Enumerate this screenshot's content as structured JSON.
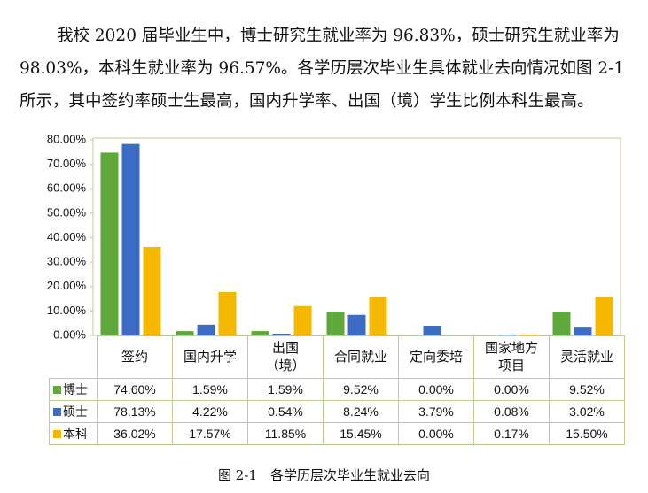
{
  "paragraph_lines": [
    "我校 2020 届毕业生中，博士研究生就业率为 96.83%，硕士研究生就业率为",
    "98.03%，本科生就业率为 96.57%。各学历层次毕业生具体就业去向情况如图 2-1",
    "所示，其中签约率硕士生最高，国内升学率、出国（境）学生比例本科生最高。"
  ],
  "chart_data": {
    "type": "bar",
    "categories": [
      "签约",
      "国内升学",
      "出国\n（境）",
      "合同就业",
      "定向委培",
      "国家地方\n项目",
      "灵活就业"
    ],
    "series": [
      {
        "name": "博士",
        "color": "#5fa83a",
        "values": [
          74.6,
          1.59,
          1.59,
          9.52,
          0,
          0,
          9.52
        ],
        "value_labels": [
          "74.60%",
          "1.59%",
          "1.59%",
          "9.52%",
          "0.00%",
          "0.00%",
          "9.52%"
        ]
      },
      {
        "name": "硕士",
        "color": "#3c6cc4",
        "values": [
          78.13,
          4.22,
          0.54,
          8.24,
          3.79,
          0.08,
          3.02
        ],
        "value_labels": [
          "78.13%",
          "4.22%",
          "0.54%",
          "8.24%",
          "3.79%",
          "0.08%",
          "3.02%"
        ]
      },
      {
        "name": "本科",
        "color": "#f5b800",
        "values": [
          36.02,
          17.57,
          11.85,
          15.45,
          0,
          0.17,
          15.5
        ],
        "value_labels": [
          "36.02%",
          "17.57%",
          "11.85%",
          "15.45%",
          "0.00%",
          "0.17%",
          "15.50%"
        ]
      }
    ],
    "ylim": [
      0,
      80
    ],
    "yticks": [
      {
        "value": 0,
        "label": "0.00%"
      },
      {
        "value": 10,
        "label": "10.00%"
      },
      {
        "value": 20,
        "label": "20.00%"
      },
      {
        "value": 30,
        "label": "30.00%"
      },
      {
        "value": 40,
        "label": "40.00%"
      },
      {
        "value": 50,
        "label": "50.00%"
      },
      {
        "value": 60,
        "label": "60.00%"
      },
      {
        "value": 70,
        "label": "70.00%"
      },
      {
        "value": 80,
        "label": "80.00%"
      }
    ],
    "caption": "图 2-1　各学历层次毕业生就业去向"
  }
}
